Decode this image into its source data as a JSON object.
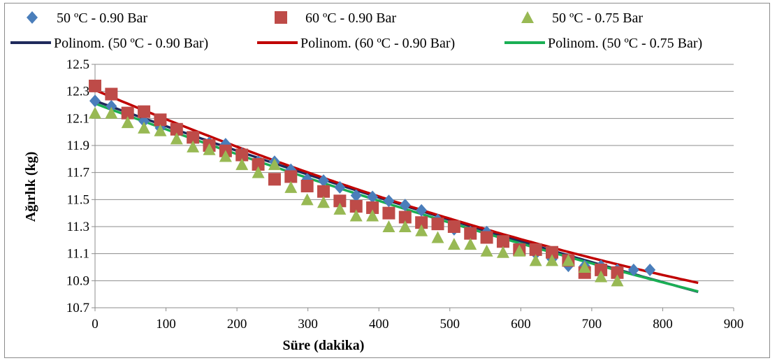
{
  "chart_data": {
    "type": "scatter",
    "title": "",
    "xlabel": "Süre (dakika)",
    "ylabel": "Ağırlık (kg)",
    "xlim": [
      0,
      900
    ],
    "ylim": [
      10.7,
      12.5
    ],
    "xticks": [
      "0",
      "100",
      "200",
      "300",
      "400",
      "500",
      "600",
      "700",
      "800",
      "900"
    ],
    "yticks": [
      "10.7",
      "10.9",
      "11.1",
      "11.3",
      "11.5",
      "11.7",
      "11.9",
      "12.1",
      "12.3",
      "12.5"
    ],
    "grid": "horizontal",
    "legend_position": "top",
    "series": [
      {
        "name": "50 ºC - 0.90 Bar",
        "marker": "diamond",
        "color": "#4a7ebb",
        "x": [
          0,
          23,
          46,
          69,
          92,
          115,
          138,
          161,
          184,
          207,
          230,
          253,
          276,
          299,
          322,
          345,
          368,
          391,
          414,
          437,
          460,
          483,
          506,
          529,
          552,
          575,
          598,
          621,
          644,
          667,
          690,
          713,
          736,
          759,
          782
        ],
        "y": [
          12.23,
          12.19,
          12.13,
          12.08,
          12.03,
          12.0,
          11.96,
          11.92,
          11.91,
          11.84,
          11.78,
          11.78,
          11.72,
          11.65,
          11.64,
          11.59,
          11.53,
          11.52,
          11.49,
          11.46,
          11.42,
          11.35,
          11.28,
          11.26,
          11.26,
          11.18,
          11.14,
          11.1,
          11.06,
          11.01,
          11.01,
          11.01,
          10.98,
          10.98,
          10.98
        ]
      },
      {
        "name": "60 ºC - 0.90 Bar",
        "marker": "square",
        "color": "#be4b48",
        "x": [
          0,
          23,
          46,
          69,
          92,
          115,
          138,
          161,
          184,
          207,
          230,
          253,
          276,
          299,
          322,
          345,
          368,
          391,
          414,
          437,
          460,
          483,
          506,
          529,
          552,
          575,
          598,
          621,
          644,
          667,
          690,
          713,
          736
        ],
        "y": [
          12.34,
          12.28,
          12.14,
          12.15,
          12.09,
          12.02,
          11.96,
          11.9,
          11.86,
          11.83,
          11.76,
          11.65,
          11.67,
          11.6,
          11.56,
          11.49,
          11.45,
          11.44,
          11.4,
          11.37,
          11.33,
          11.32,
          11.3,
          11.25,
          11.22,
          11.19,
          11.13,
          11.13,
          11.11,
          11.05,
          10.96,
          10.98,
          10.96
        ]
      },
      {
        "name": "50 ºC - 0.75 Bar",
        "marker": "triangle",
        "color": "#98b954",
        "x": [
          0,
          23,
          46,
          69,
          92,
          115,
          138,
          161,
          184,
          207,
          230,
          253,
          276,
          299,
          322,
          345,
          368,
          391,
          414,
          437,
          460,
          483,
          506,
          529,
          552,
          575,
          598,
          621,
          644,
          667,
          690,
          713,
          736
        ],
        "y": [
          12.14,
          12.14,
          12.07,
          12.03,
          12.01,
          11.95,
          11.89,
          11.87,
          11.82,
          11.76,
          11.7,
          11.76,
          11.59,
          11.5,
          11.48,
          11.43,
          11.38,
          11.38,
          11.3,
          11.3,
          11.27,
          11.22,
          11.17,
          11.17,
          11.12,
          11.11,
          11.12,
          11.05,
          11.05,
          11.05,
          11.0,
          10.93,
          10.9
        ]
      }
    ],
    "trendlines": [
      {
        "name": "Polinom. (50 ºC - 0.90 Bar)",
        "color": "#1f2a5c",
        "x": [
          0,
          850
        ],
        "coeffs": [
          12.23,
          -0.0019,
          2.8e-07
        ]
      },
      {
        "name": "Polinom. (60 ºC - 0.90 Bar)",
        "color": "#c00000",
        "x": [
          0,
          850
        ],
        "coeffs": [
          12.31,
          -0.002224,
          6.43e-07
        ]
      },
      {
        "name": "Polinom. (50 ºC - 0.75 Bar)",
        "color": "#1aaf54",
        "x": [
          0,
          850
        ],
        "coeffs": [
          12.21,
          -0.001943,
          3.63e-07
        ]
      }
    ]
  }
}
